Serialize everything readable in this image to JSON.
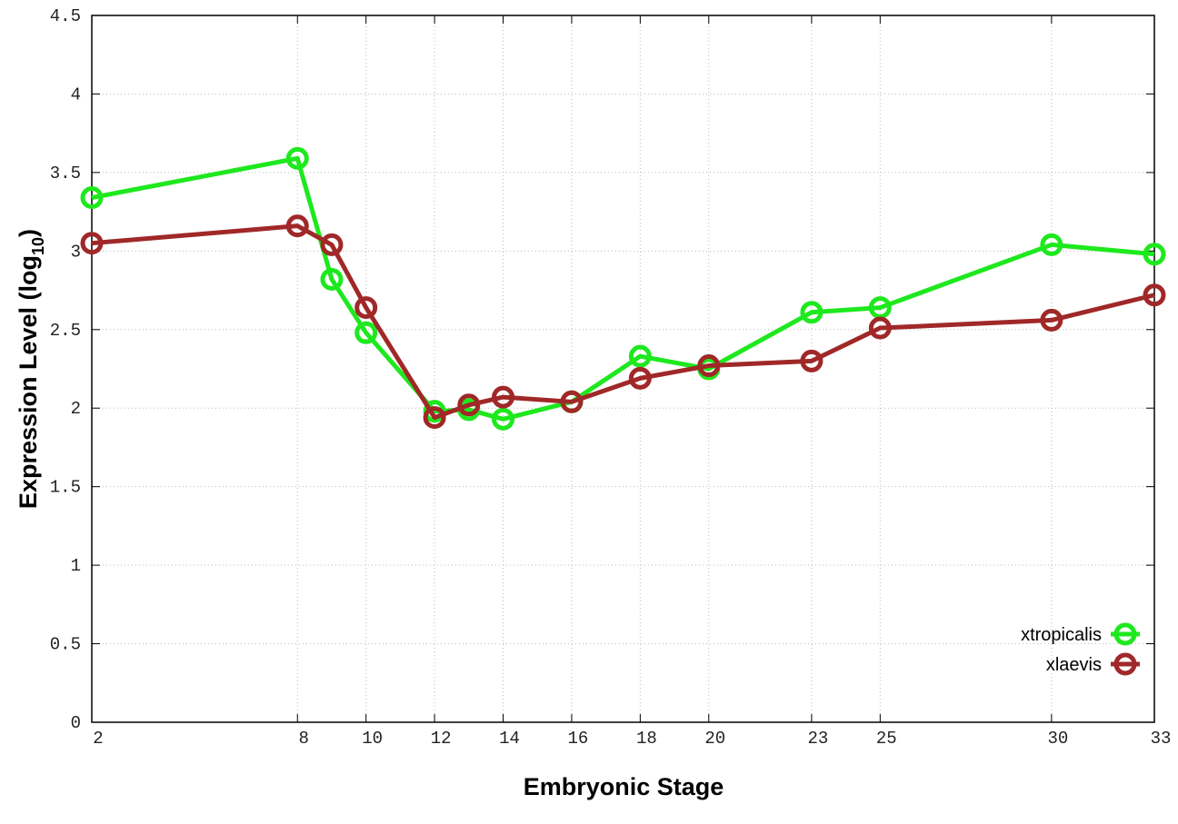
{
  "chart_data": {
    "type": "line",
    "title": "",
    "xlabel": "Embryonic Stage",
    "ylabel": "Expression Level (log",
    "ylabel_subscript": "10",
    "ylabel_close": ")",
    "x": [
      2,
      8,
      9,
      10,
      12,
      13,
      14,
      16,
      18,
      20,
      23,
      25,
      30,
      33
    ],
    "x_tick_labels": [
      "2",
      "8",
      "10",
      "12",
      "14",
      "16",
      "18",
      "20",
      "23",
      "25",
      "30",
      "33"
    ],
    "x_tick_values": [
      2,
      8,
      10,
      12,
      14,
      16,
      18,
      20,
      23,
      25,
      30,
      33
    ],
    "xlim": [
      2,
      33
    ],
    "ylim": [
      0,
      4.5
    ],
    "y_tick_labels": [
      "0",
      "0.5",
      "1",
      "1.5",
      "2",
      "2.5",
      "3",
      "3.5",
      "4",
      "4.5"
    ],
    "y_tick_values": [
      0,
      0.5,
      1,
      1.5,
      2,
      2.5,
      3,
      3.5,
      4,
      4.5
    ],
    "grid": true,
    "legend_position": "bottom-right",
    "series": [
      {
        "name": "xtropicalis",
        "color": "#1ee81e",
        "values": [
          3.34,
          3.59,
          2.82,
          2.48,
          1.98,
          1.99,
          1.93,
          2.04,
          2.33,
          2.25,
          2.61,
          2.64,
          3.04,
          2.98
        ]
      },
      {
        "name": "xlaevis",
        "color": "#a02828",
        "values": [
          3.05,
          3.16,
          3.04,
          2.64,
          1.94,
          2.02,
          2.07,
          2.04,
          2.19,
          2.27,
          2.3,
          2.51,
          2.56,
          2.72
        ]
      }
    ]
  }
}
